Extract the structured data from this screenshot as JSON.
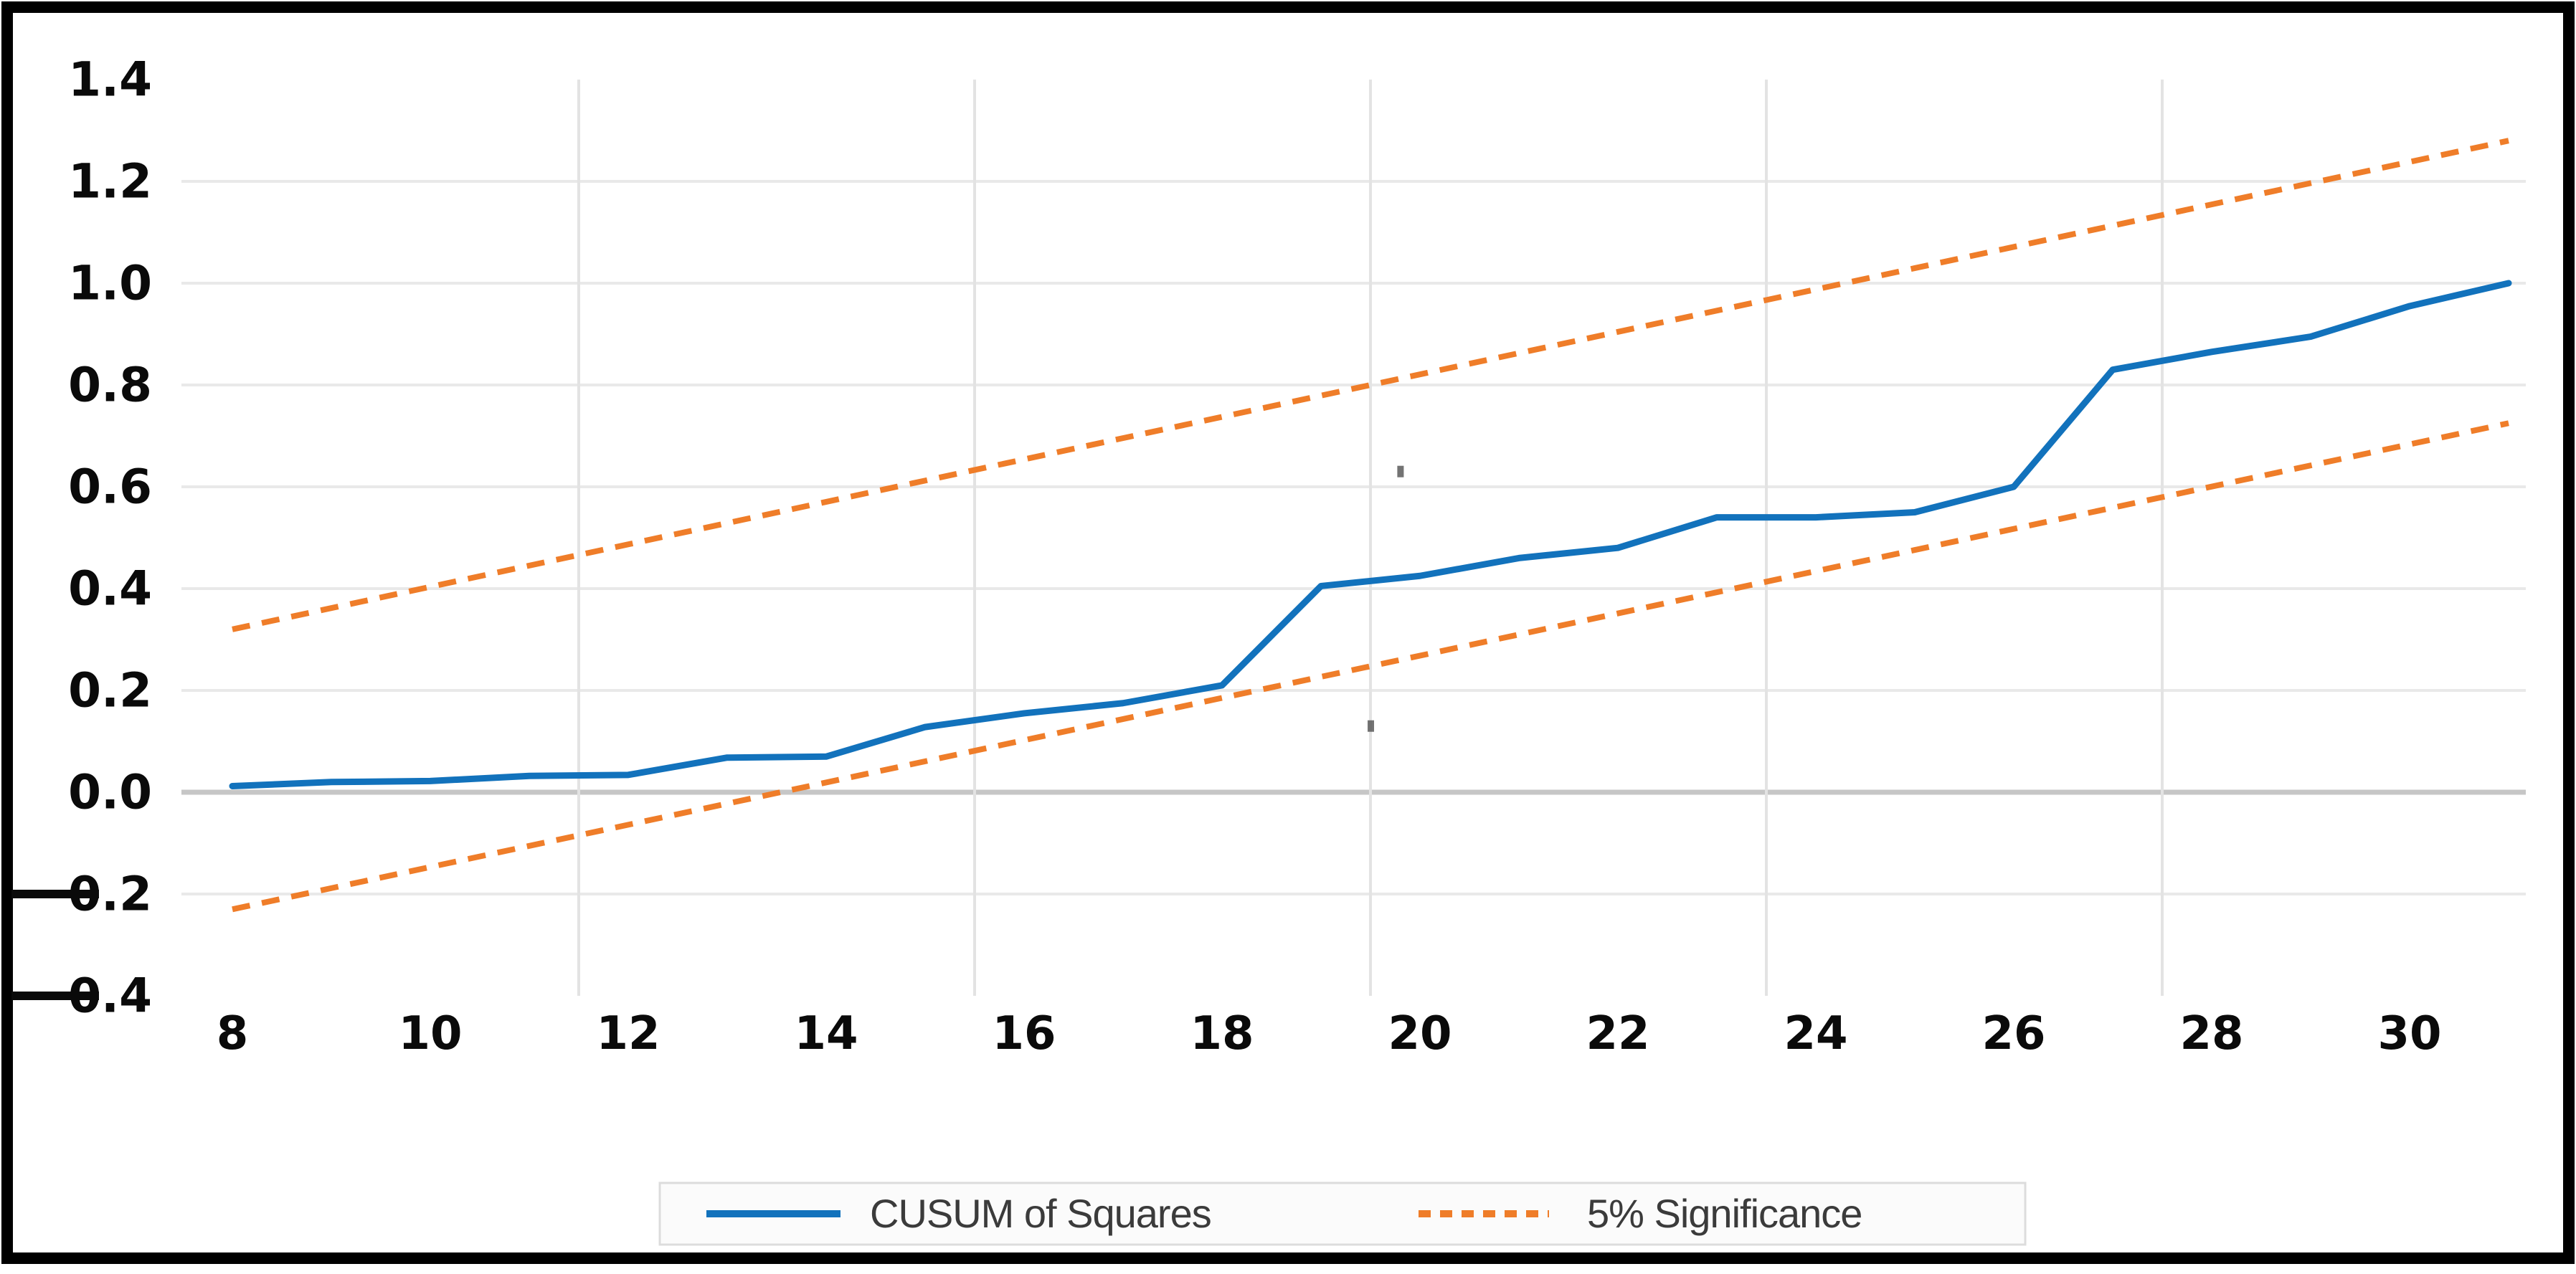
{
  "chart_data": {
    "type": "line",
    "title": "",
    "xlabel": "",
    "ylabel": "",
    "xlim": [
      8,
      31
    ],
    "ylim": [
      -0.4,
      1.4
    ],
    "x": [
      8,
      9,
      10,
      11,
      12,
      13,
      14,
      15,
      16,
      17,
      18,
      19,
      20,
      21,
      22,
      23,
      24,
      25,
      26,
      27,
      28,
      29,
      30,
      31
    ],
    "x_tick_positions": [
      8,
      10,
      12,
      14,
      16,
      18,
      20,
      22,
      24,
      26,
      28,
      30
    ],
    "x_tick_labels": [
      "8",
      "10",
      "12",
      "14",
      "16",
      "18",
      "20",
      "22",
      "24",
      "26",
      "28",
      "30"
    ],
    "y_tick_values": [
      1.4,
      1.2,
      1.0,
      0.8,
      0.6,
      0.4,
      0.2,
      0.0,
      -0.2,
      -0.4
    ],
    "y_tick_labels": [
      "1.4",
      "1.2",
      "1.0",
      "0.8",
      "0.6",
      "0.4",
      "0.2",
      "0.0",
      "-0.2",
      "-0.4"
    ],
    "grid": {
      "horizontal_lines_at": [
        1.2,
        1.0,
        0.8,
        0.6,
        0.4,
        0.2,
        -0.2
      ],
      "zero_line_at": 0.0,
      "vertical_lines_at": [
        11.5,
        15.5,
        19.5,
        23.5,
        27.5
      ]
    },
    "legend_position": "bottom-center",
    "series": [
      {
        "name": "CUSUM of Squares",
        "style": "solid",
        "color": "#1272bc",
        "values": [
          0.012,
          0.02,
          0.022,
          0.032,
          0.034,
          0.068,
          0.07,
          0.128,
          0.155,
          0.175,
          0.21,
          0.405,
          0.425,
          0.46,
          0.48,
          0.54,
          0.54,
          0.55,
          0.6,
          0.83,
          0.865,
          0.895,
          0.955,
          1.0
        ]
      },
      {
        "name": "5% Significance",
        "style": "dashed",
        "color": "#ef7d29",
        "upper_line": [
          [
            8,
            0.32
          ],
          [
            31,
            1.28
          ]
        ],
        "lower_line": [
          [
            8,
            -0.23
          ],
          [
            31,
            0.725
          ]
        ]
      }
    ],
    "artifacts": [
      {
        "x": 19.8,
        "v": 0.63
      },
      {
        "x": 19.5,
        "v": 0.13
      }
    ]
  },
  "legend": {
    "items": [
      {
        "label": "CUSUM of Squares",
        "swatch": "solid-line",
        "color": "#1272bc"
      },
      {
        "label": "5% Significance",
        "swatch": "dashed-line",
        "color": "#ef7d29"
      }
    ]
  },
  "colors": {
    "series_blue": "#1272bc",
    "series_orange": "#ef7d29",
    "gridline": "#e9e9e9",
    "vertical_gridline": "#e3e3e3",
    "zero_line": "#c6c6c6",
    "border": "#000000",
    "legend_border": "#dcdcdc",
    "legend_fill": "#fbfbfb",
    "tick_text": "#0a0a0a",
    "artifact": "#5a5a5a"
  }
}
